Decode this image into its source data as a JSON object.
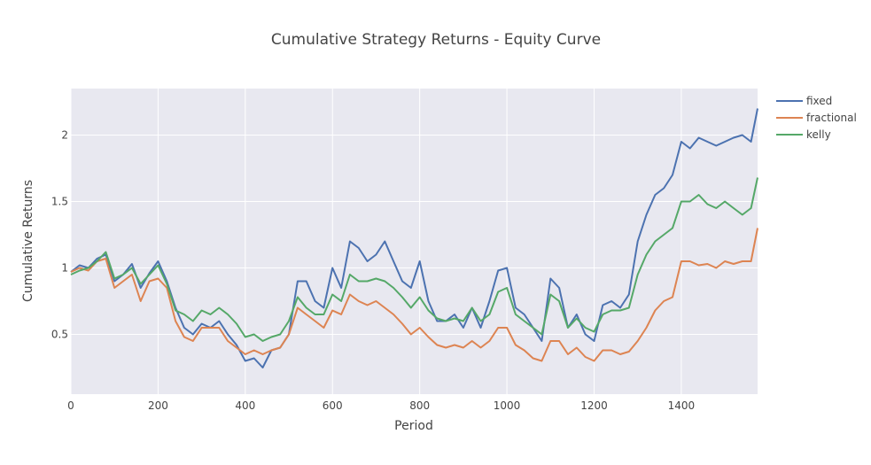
{
  "chart_data": {
    "type": "line",
    "title": "Cumulative Strategy Returns - Equity Curve",
    "xlabel": "Period",
    "ylabel": "Cumulative Returns",
    "xlim": [
      0,
      1575
    ],
    "ylim": [
      0.05,
      2.35
    ],
    "x_ticks": [
      0,
      200,
      400,
      600,
      800,
      1000,
      1200,
      1400
    ],
    "x_tick_labels": [
      "0",
      "200",
      "400",
      "600",
      "800",
      "1000",
      "1200",
      "1400"
    ],
    "y_ticks": [
      0.5,
      1,
      1.5,
      2
    ],
    "y_tick_labels": [
      "0.5",
      "1",
      "1.5",
      "2"
    ],
    "grid": true,
    "legend_position": "right",
    "series": [
      {
        "name": "fixed",
        "color": "#4c72b0",
        "x": [
          0,
          20,
          40,
          60,
          80,
          100,
          120,
          140,
          160,
          180,
          200,
          220,
          240,
          260,
          280,
          300,
          320,
          340,
          360,
          380,
          400,
          420,
          440,
          460,
          480,
          500,
          520,
          540,
          560,
          580,
          600,
          620,
          640,
          660,
          680,
          700,
          720,
          740,
          760,
          780,
          800,
          820,
          840,
          860,
          880,
          900,
          920,
          940,
          960,
          980,
          1000,
          1020,
          1040,
          1060,
          1080,
          1100,
          1120,
          1140,
          1160,
          1180,
          1200,
          1220,
          1240,
          1260,
          1280,
          1300,
          1320,
          1340,
          1360,
          1380,
          1400,
          1420,
          1440,
          1460,
          1480,
          1500,
          1520,
          1540,
          1560,
          1575
        ],
        "y": [
          0.97,
          1.02,
          1.0,
          1.07,
          1.1,
          0.9,
          0.95,
          1.03,
          0.85,
          0.96,
          1.05,
          0.9,
          0.7,
          0.55,
          0.5,
          0.58,
          0.55,
          0.6,
          0.5,
          0.42,
          0.3,
          0.32,
          0.25,
          0.38,
          0.4,
          0.5,
          0.9,
          0.9,
          0.75,
          0.7,
          1.0,
          0.85,
          1.2,
          1.15,
          1.05,
          1.1,
          1.2,
          1.05,
          0.9,
          0.85,
          1.05,
          0.75,
          0.6,
          0.6,
          0.65,
          0.55,
          0.7,
          0.55,
          0.75,
          0.98,
          1.0,
          0.7,
          0.65,
          0.55,
          0.45,
          0.92,
          0.85,
          0.55,
          0.65,
          0.5,
          0.45,
          0.72,
          0.75,
          0.7,
          0.8,
          1.2,
          1.4,
          1.55,
          1.6,
          1.7,
          1.95,
          1.9,
          1.98,
          1.95,
          1.92,
          1.95,
          1.98,
          2.0,
          1.95,
          2.2
        ]
      },
      {
        "name": "fractional",
        "color": "#dd8452",
        "x": [
          0,
          20,
          40,
          60,
          80,
          100,
          120,
          140,
          160,
          180,
          200,
          220,
          240,
          260,
          280,
          300,
          320,
          340,
          360,
          380,
          400,
          420,
          440,
          460,
          480,
          500,
          520,
          540,
          560,
          580,
          600,
          620,
          640,
          660,
          680,
          700,
          720,
          740,
          760,
          780,
          800,
          820,
          840,
          860,
          880,
          900,
          920,
          940,
          960,
          980,
          1000,
          1020,
          1040,
          1060,
          1080,
          1100,
          1120,
          1140,
          1160,
          1180,
          1200,
          1220,
          1240,
          1260,
          1280,
          1300,
          1320,
          1340,
          1360,
          1380,
          1400,
          1420,
          1440,
          1460,
          1480,
          1500,
          1520,
          1540,
          1560,
          1575
        ],
        "y": [
          0.97,
          1.0,
          0.98,
          1.05,
          1.07,
          0.85,
          0.9,
          0.95,
          0.75,
          0.9,
          0.92,
          0.85,
          0.6,
          0.48,
          0.45,
          0.55,
          0.55,
          0.55,
          0.45,
          0.4,
          0.35,
          0.38,
          0.35,
          0.38,
          0.4,
          0.5,
          0.7,
          0.65,
          0.6,
          0.55,
          0.68,
          0.65,
          0.8,
          0.75,
          0.72,
          0.75,
          0.7,
          0.65,
          0.58,
          0.5,
          0.55,
          0.48,
          0.42,
          0.4,
          0.42,
          0.4,
          0.45,
          0.4,
          0.45,
          0.55,
          0.55,
          0.42,
          0.38,
          0.32,
          0.3,
          0.45,
          0.45,
          0.35,
          0.4,
          0.33,
          0.3,
          0.38,
          0.38,
          0.35,
          0.37,
          0.45,
          0.55,
          0.68,
          0.75,
          0.78,
          1.05,
          1.05,
          1.02,
          1.03,
          1.0,
          1.05,
          1.03,
          1.05,
          1.05,
          1.3
        ]
      },
      {
        "name": "kelly",
        "color": "#55a868",
        "x": [
          0,
          20,
          40,
          60,
          80,
          100,
          120,
          140,
          160,
          180,
          200,
          220,
          240,
          260,
          280,
          300,
          320,
          340,
          360,
          380,
          400,
          420,
          440,
          460,
          480,
          500,
          520,
          540,
          560,
          580,
          600,
          620,
          640,
          660,
          680,
          700,
          720,
          740,
          760,
          780,
          800,
          820,
          840,
          860,
          880,
          900,
          920,
          940,
          960,
          980,
          1000,
          1020,
          1040,
          1060,
          1080,
          1100,
          1120,
          1140,
          1160,
          1180,
          1200,
          1220,
          1240,
          1260,
          1280,
          1300,
          1320,
          1340,
          1360,
          1380,
          1400,
          1420,
          1440,
          1460,
          1480,
          1500,
          1520,
          1540,
          1560,
          1575
        ],
        "y": [
          0.95,
          0.98,
          1.0,
          1.05,
          1.12,
          0.92,
          0.95,
          1.0,
          0.88,
          0.95,
          1.02,
          0.88,
          0.68,
          0.65,
          0.6,
          0.68,
          0.65,
          0.7,
          0.65,
          0.58,
          0.48,
          0.5,
          0.45,
          0.48,
          0.5,
          0.6,
          0.78,
          0.7,
          0.65,
          0.65,
          0.8,
          0.75,
          0.95,
          0.9,
          0.9,
          0.92,
          0.9,
          0.85,
          0.78,
          0.7,
          0.78,
          0.68,
          0.62,
          0.6,
          0.62,
          0.6,
          0.7,
          0.6,
          0.65,
          0.82,
          0.85,
          0.65,
          0.6,
          0.55,
          0.5,
          0.8,
          0.75,
          0.55,
          0.62,
          0.55,
          0.52,
          0.65,
          0.68,
          0.68,
          0.7,
          0.95,
          1.1,
          1.2,
          1.25,
          1.3,
          1.5,
          1.5,
          1.55,
          1.48,
          1.45,
          1.5,
          1.45,
          1.4,
          1.45,
          1.68
        ]
      }
    ]
  }
}
